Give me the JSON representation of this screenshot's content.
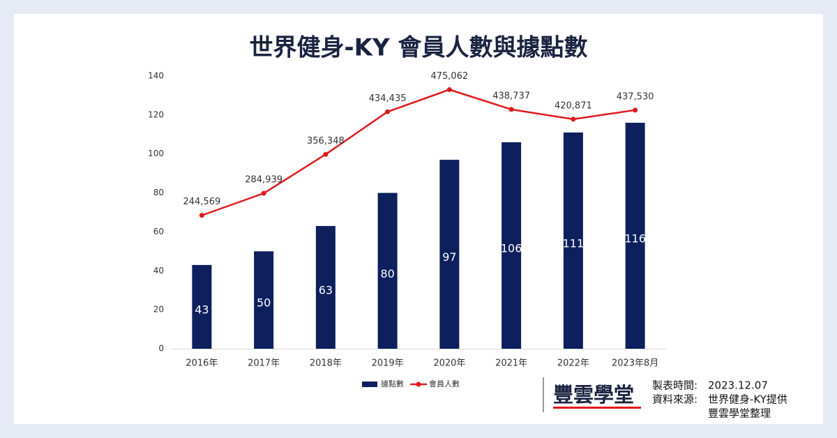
{
  "chart_data": {
    "type": "bar-line",
    "title": "世界健身-KY 會員人數與據點數",
    "categories": [
      "2016年",
      "2017年",
      "2018年",
      "2019年",
      "2020年",
      "2021年",
      "2022年",
      "2023年8月"
    ],
    "series": [
      {
        "name": "據點數",
        "type": "bar",
        "color": "#0d1f5c",
        "values": [
          43,
          50,
          63,
          80,
          97,
          106,
          111,
          116
        ]
      },
      {
        "name": "會員人數",
        "type": "line",
        "axis": "y2",
        "color": "#e0191c",
        "values": [
          244569,
          284939,
          356348,
          434435,
          475062,
          438737,
          420871,
          437530
        ],
        "value_labels": [
          "244,569",
          "284,939",
          "356,348",
          "434,435",
          "475,062",
          "438,737",
          "420,871",
          "437,530"
        ]
      }
    ],
    "ylim": [
      0,
      140
    ],
    "yticks": [
      0,
      20,
      40,
      60,
      80,
      100,
      120,
      140
    ],
    "y2lim": [
      0,
      500000
    ],
    "grid": false,
    "legend": "bottom"
  },
  "footer": {
    "logo": "豐雲學堂",
    "date_label": "製表時間:",
    "date": "2023.12.07",
    "source_label": "資料來源:",
    "source_lines": [
      "世界健身-KY提供",
      "豐雲學堂整理"
    ]
  }
}
